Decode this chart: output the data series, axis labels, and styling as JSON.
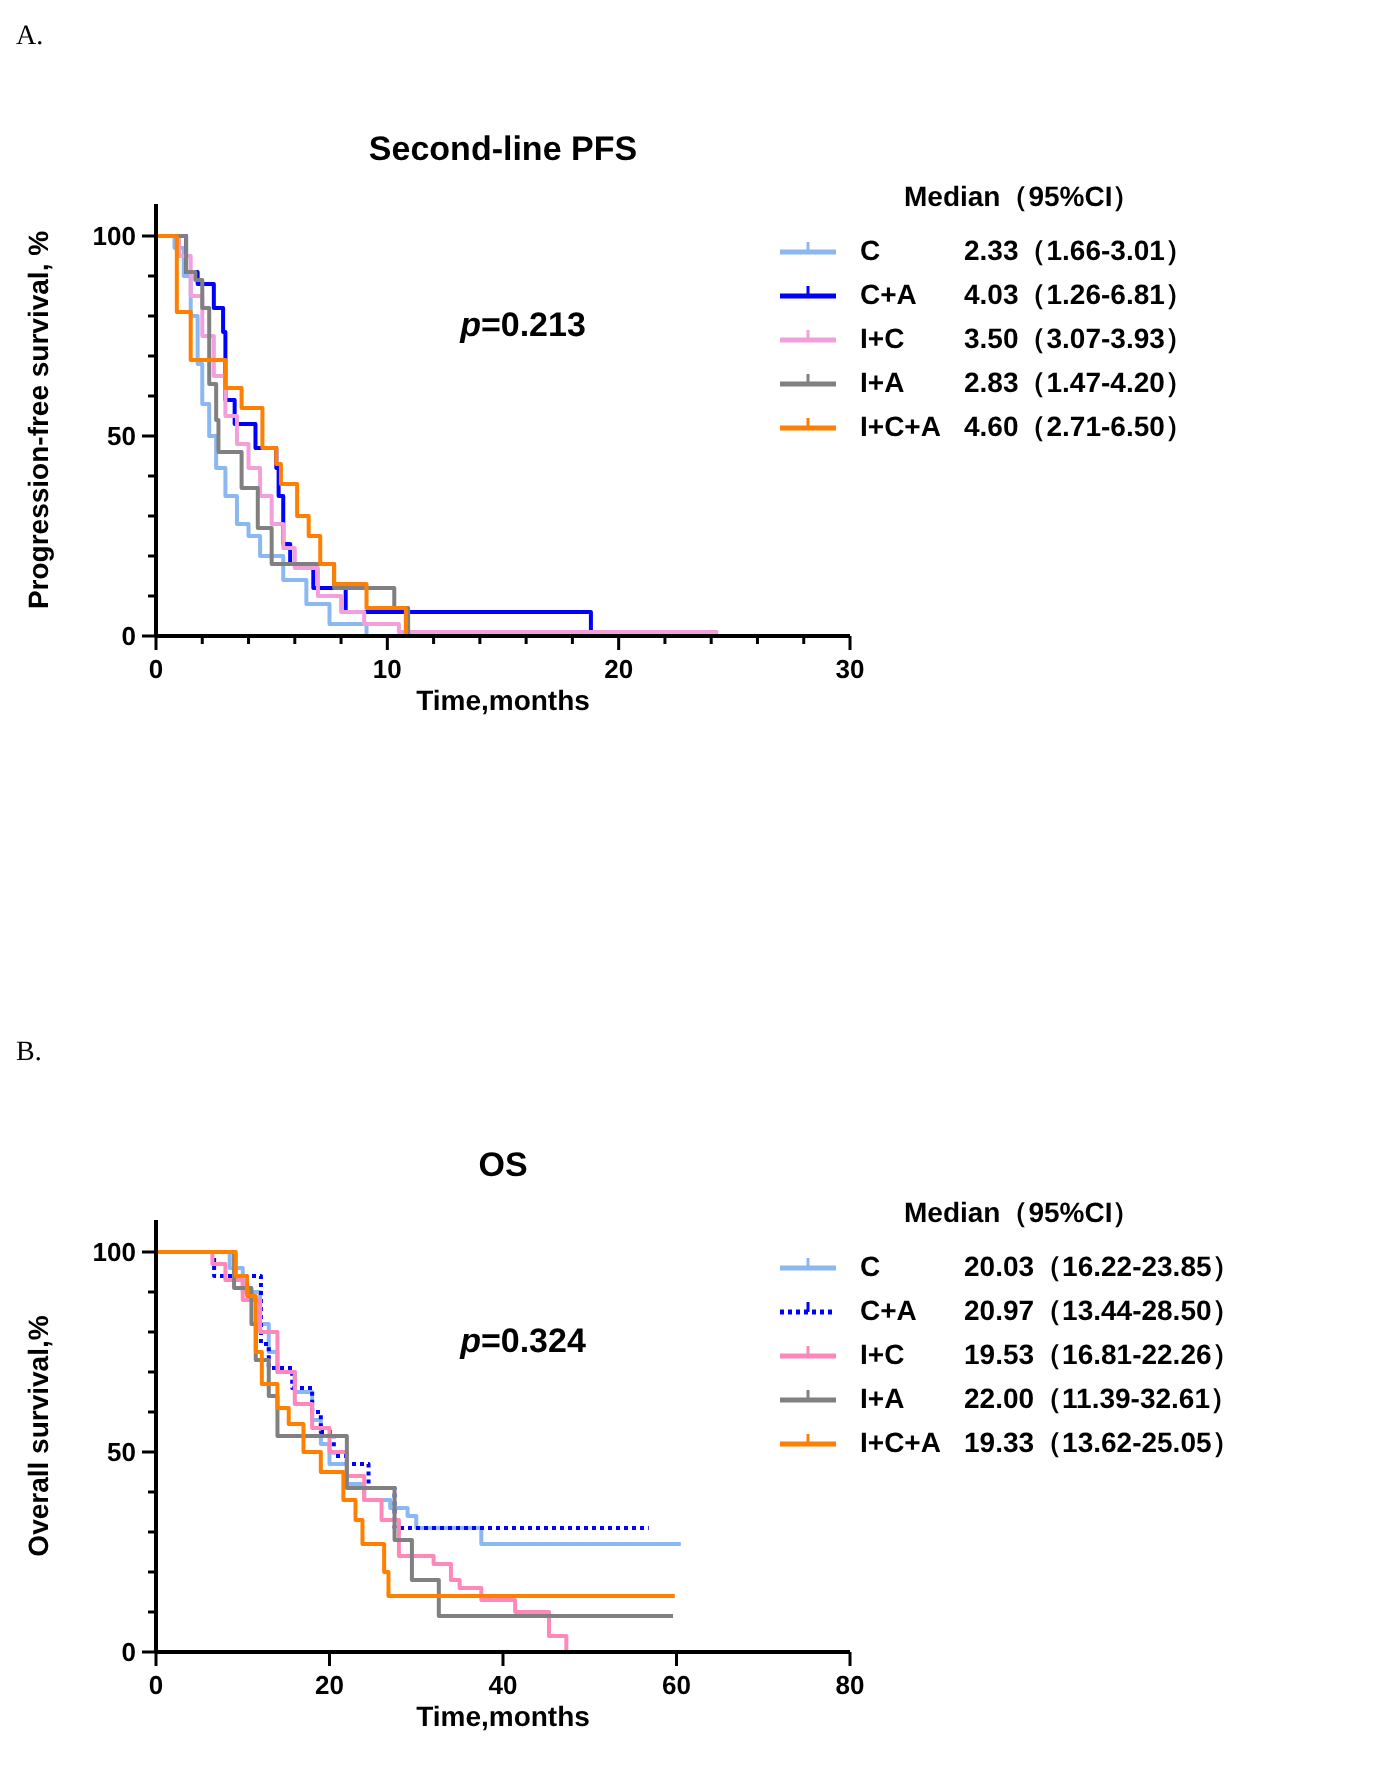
{
  "chart_data": [
    {
      "type": "step",
      "title": "Second-line PFS",
      "xlabel": "Time,months",
      "ylabel": "Progression-free survival, %",
      "legend_title": "Median（95%CI）",
      "legend": "right",
      "line_style": "solid",
      "grid": false,
      "xlim": [
        0,
        30
      ],
      "xticks": [
        0,
        {
          "value": 2,
          "label": null
        },
        {
          "value": 4,
          "label": null
        },
        {
          "value": 6,
          "label": null
        },
        {
          "value": 8,
          "label": null
        },
        10,
        {
          "value": 12,
          "label": null
        },
        {
          "value": 14,
          "label": null
        },
        {
          "value": 16,
          "label": null
        },
        {
          "value": 18,
          "label": null
        },
        20,
        {
          "value": 22,
          "label": null
        },
        {
          "value": 24,
          "label": null
        },
        {
          "value": 26,
          "label": null
        },
        {
          "value": 28,
          "label": null
        },
        30
      ],
      "ylim": [
        0,
        108
      ],
      "yticks": [
        0,
        {
          "value": 10,
          "label": null
        },
        {
          "value": 20,
          "label": null
        },
        {
          "value": 30,
          "label": null
        },
        {
          "value": 40,
          "label": null
        },
        50,
        {
          "value": 60,
          "label": null
        },
        {
          "value": 70,
          "label": null
        },
        {
          "value": 80,
          "label": null
        },
        {
          "value": 90,
          "label": null
        },
        100
      ],
      "annotations": [
        "A.",
        "p=0.213",
        "2.33（1.66-3.01）",
        "4.03（1.26-6.81）",
        "3.50（3.07-3.93）",
        "2.83（1.47-4.20）",
        "4.60（2.71-6.50）"
      ],
      "series": [
        {
          "name": "C",
          "color": "#8cb8f2",
          "x": [
            0,
            0.8,
            1.2,
            1.5,
            1.8,
            2.0,
            2.3,
            2.6,
            3.0,
            3.5,
            4.0,
            4.5,
            5.5,
            6.5,
            7.5,
            9.1
          ],
          "values": [
            100,
            97,
            90,
            80,
            68,
            58,
            50,
            42,
            35,
            28,
            25,
            20,
            14,
            8,
            3,
            0
          ]
        },
        {
          "name": "C+A",
          "color": "#0000ff",
          "x": [
            0,
            1.3,
            1.8,
            2.5,
            2.9,
            3.0,
            3.4,
            4.3,
            5.2,
            5.3,
            5.5,
            5.8,
            6.8,
            8.2,
            18.8
          ],
          "values": [
            100,
            91,
            88,
            82,
            76,
            59,
            53,
            47,
            42,
            35,
            23,
            18,
            12,
            6,
            0
          ]
        },
        {
          "name": "I+C",
          "color": "#f2a0dc",
          "x": [
            0,
            1.0,
            1.5,
            2.0,
            2.5,
            3.0,
            3.5,
            4.0,
            4.5,
            5.0,
            5.5,
            6.0,
            7.0,
            8.0,
            9.0,
            10.5,
            24.3
          ],
          "values": [
            100,
            95,
            85,
            75,
            65,
            55,
            48,
            42,
            35,
            28,
            22,
            17,
            10,
            6,
            3,
            1,
            1
          ]
        },
        {
          "name": "I+A",
          "color": "#808080",
          "x": [
            0,
            1.3,
            1.7,
            2.0,
            2.3,
            2.6,
            2.7,
            3.7,
            4.4,
            5.0,
            7.7,
            10.3,
            10.9
          ],
          "values": [
            100,
            91,
            89,
            82,
            63,
            54,
            46,
            37,
            27,
            18,
            12,
            7,
            0
          ]
        },
        {
          "name": "I+C+A",
          "color": "#ff7f00",
          "x": [
            0,
            0.9,
            1.5,
            3.0,
            3.7,
            4.6,
            5.2,
            5.4,
            6.1,
            6.6,
            7.1,
            7.7,
            9.1,
            10.8
          ],
          "values": [
            100,
            81,
            69,
            62,
            57,
            47,
            43,
            38,
            30,
            25,
            18,
            13,
            7,
            0
          ]
        }
      ]
    },
    {
      "type": "step",
      "title": "OS",
      "xlabel": "Time,months",
      "ylabel": "Overall survival,%",
      "legend_title": "Median（95%CI）",
      "legend": "right",
      "line_style": "solid",
      "grid": false,
      "xlim": [
        0,
        80
      ],
      "xticks": [
        0,
        20,
        40,
        60,
        80
      ],
      "ylim": [
        0,
        108
      ],
      "yticks": [
        0,
        {
          "value": 10,
          "label": null
        },
        {
          "value": 20,
          "label": null
        },
        {
          "value": 30,
          "label": null
        },
        {
          "value": 40,
          "label": null
        },
        50,
        {
          "value": 60,
          "label": null
        },
        {
          "value": 70,
          "label": null
        },
        {
          "value": 80,
          "label": null
        },
        {
          "value": 90,
          "label": null
        },
        100
      ],
      "annotations": [
        "B.",
        "p=0.324",
        "20.03（16.22-23.85）",
        "20.97（13.44-28.50）",
        "19.53（16.81-22.26）",
        "22.00（11.39-32.61）",
        "19.33（13.62-25.05）"
      ],
      "series": [
        {
          "name": "C",
          "color": "#8cb8f2",
          "x": [
            0,
            8.5,
            10,
            12,
            13,
            14,
            16,
            18,
            19,
            20,
            22,
            24,
            27,
            29,
            30,
            37.5,
            60.5
          ],
          "values": [
            100,
            96,
            90,
            82,
            75,
            70,
            65,
            58,
            52,
            47,
            42,
            38,
            36,
            34,
            31,
            27,
            27
          ]
        },
        {
          "name": "C+A",
          "color": "#0000ff",
          "line_style": "dotted",
          "x": [
            0,
            6.7,
            12.1,
            13,
            15.7,
            18,
            19,
            20.5,
            22,
            24.5,
            27.5,
            56.8
          ],
          "values": [
            100,
            94,
            77,
            71,
            66,
            60,
            55,
            49,
            47,
            41,
            31,
            31
          ]
        },
        {
          "name": "I+C",
          "color": "#ff88bb",
          "x": [
            0,
            6.5,
            8,
            10,
            12,
            14,
            16,
            18,
            20,
            22,
            24,
            26,
            28,
            32,
            34,
            35,
            37.5,
            41.4,
            45.3,
            47.3
          ],
          "values": [
            100,
            97,
            93,
            88,
            80,
            70,
            62,
            56,
            50,
            44,
            38,
            33,
            24,
            22,
            18,
            16,
            13,
            10,
            4,
            0
          ]
        },
        {
          "name": "I+A",
          "color": "#808080",
          "x": [
            0,
            9,
            11,
            11.5,
            13,
            14,
            22,
            27.5,
            29.5,
            32.6,
            59.6
          ],
          "values": [
            100,
            91,
            82,
            73,
            64,
            54,
            41,
            28,
            18,
            9,
            9
          ]
        },
        {
          "name": "I+C+A",
          "color": "#ff7f00",
          "x": [
            0,
            9.2,
            10.5,
            11.5,
            12.2,
            14,
            15.3,
            17,
            19,
            21.6,
            23,
            23.8,
            26.3,
            26.8,
            59.8
          ],
          "values": [
            100,
            94,
            89,
            75,
            67,
            61,
            57,
            50,
            45,
            38,
            33,
            27,
            20,
            14,
            14
          ]
        }
      ]
    }
  ]
}
